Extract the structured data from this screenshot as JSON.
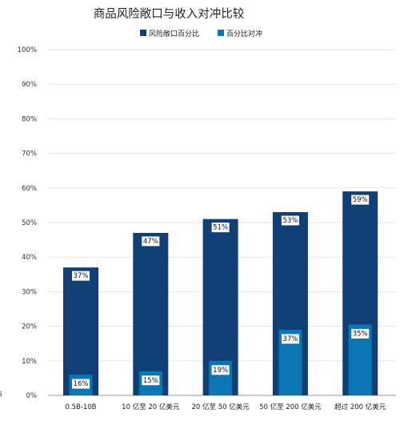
{
  "chart_data": {
    "type": "bar",
    "title": "商品风险敞口与收入对冲比较",
    "categories": [
      "0.5B-10B",
      "10 亿至 20 亿美元",
      "20 亿至 50 亿美元",
      "50 亿至 200 亿美元",
      "超过 200 亿美元"
    ],
    "series": [
      {
        "name": "风险敞口百分比",
        "values": [
          37,
          47,
          51,
          53,
          59
        ],
        "labels": [
          "37%",
          "47%",
          "51%",
          "53%",
          "59%"
        ],
        "color": "#0f3f74"
      },
      {
        "name": "百分比对冲",
        "values": [
          6,
          7,
          10,
          19,
          20.5
        ],
        "labels": [
          "16%",
          "15%",
          "19%",
          "37%",
          "35%"
        ],
        "color": "#0a76b4"
      }
    ],
    "y_ticks": [
      "0%",
      "10%",
      "20%",
      "30%",
      "40%",
      "50%",
      "60%",
      "70%",
      "80%",
      "90%",
      "100%"
    ],
    "ylim": [
      0,
      100
    ],
    "grid": true,
    "legend_position": "top-center",
    "stray_left_digit": "6"
  }
}
